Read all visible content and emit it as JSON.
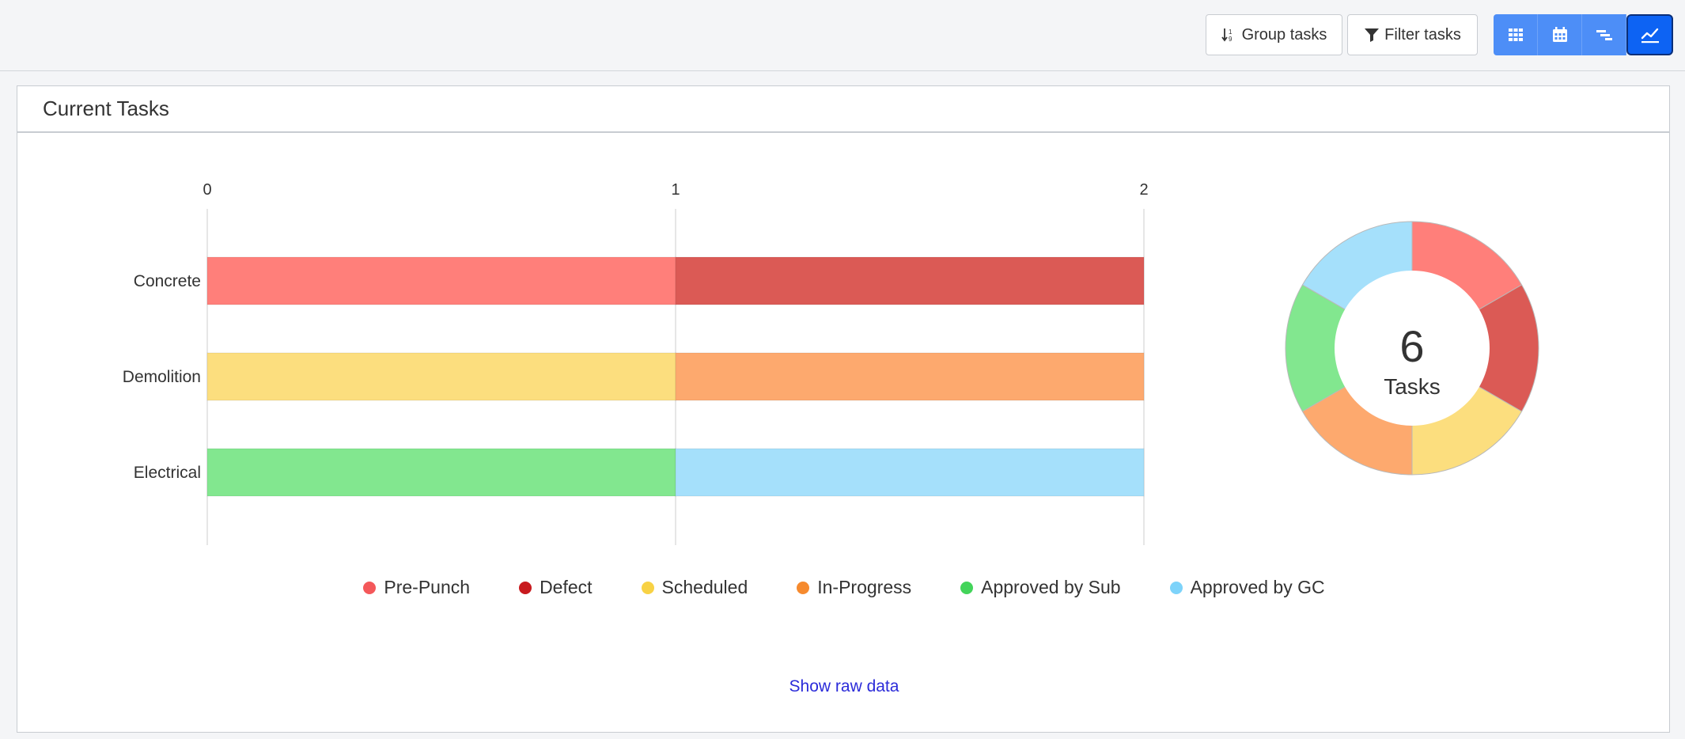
{
  "toolbar": {
    "group_label": "Group tasks",
    "filter_label": "Filter tasks",
    "views": [
      {
        "name": "grid-view-icon",
        "active": false
      },
      {
        "name": "calendar-view-icon",
        "active": false
      },
      {
        "name": "gantt-view-icon",
        "active": false
      },
      {
        "name": "chart-view-icon",
        "active": true
      }
    ]
  },
  "panel": {
    "title": "Current Tasks",
    "show_raw_label": "Show raw data"
  },
  "colors": {
    "Pre-Punch": "#ff7f7a",
    "Defect": "#db5a55",
    "Scheduled": "#fcde7e",
    "In-Progress": "#fda96e",
    "Approved by Sub": "#82e78f",
    "Approved by GC": "#a5e0fb"
  },
  "legend": [
    {
      "label": "Pre-Punch",
      "dot": "#f4585a"
    },
    {
      "label": "Defect",
      "dot": "#c81a1e"
    },
    {
      "label": "Scheduled",
      "dot": "#f8d245"
    },
    {
      "label": "In-Progress",
      "dot": "#f68a2e"
    },
    {
      "label": "Approved by Sub",
      "dot": "#43d45a"
    },
    {
      "label": "Approved by GC",
      "dot": "#7dd3fa"
    }
  ],
  "chart_data": [
    {
      "type": "bar",
      "orientation": "horizontal",
      "stacked": true,
      "categories": [
        "Concrete",
        "Demolition",
        "Electrical"
      ],
      "xlim": [
        0,
        2
      ],
      "xticks": [
        "0",
        "1",
        "2"
      ],
      "series": [
        {
          "name": "Pre-Punch",
          "values": [
            1,
            0,
            0
          ]
        },
        {
          "name": "Defect",
          "values": [
            1,
            0,
            0
          ]
        },
        {
          "name": "Scheduled",
          "values": [
            0,
            1,
            0
          ]
        },
        {
          "name": "In-Progress",
          "values": [
            0,
            1,
            0
          ]
        },
        {
          "name": "Approved by Sub",
          "values": [
            0,
            0,
            1
          ]
        },
        {
          "name": "Approved by GC",
          "values": [
            0,
            0,
            1
          ]
        }
      ],
      "legend": "bottom"
    },
    {
      "type": "pie",
      "donut": true,
      "center_value": "6",
      "center_label": "Tasks",
      "slices": [
        {
          "name": "Pre-Punch",
          "value": 1
        },
        {
          "name": "Defect",
          "value": 1
        },
        {
          "name": "Scheduled",
          "value": 1
        },
        {
          "name": "In-Progress",
          "value": 1
        },
        {
          "name": "Approved by Sub",
          "value": 1
        },
        {
          "name": "Approved by GC",
          "value": 1
        }
      ]
    }
  ]
}
